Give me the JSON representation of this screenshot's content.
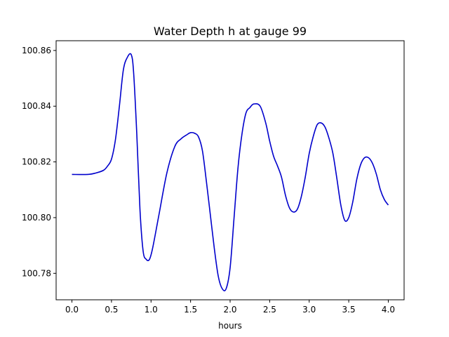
{
  "chart_data": {
    "type": "line",
    "title": "Water Depth h at gauge 99",
    "xlabel": "hours",
    "ylabel": "",
    "xlim": [
      -0.2,
      4.2
    ],
    "ylim": [
      100.7705,
      100.8635
    ],
    "xticks": [
      0.0,
      0.5,
      1.0,
      1.5,
      2.0,
      2.5,
      3.0,
      3.5,
      4.0
    ],
    "xtick_labels": [
      "0.0",
      "0.5",
      "1.0",
      "1.5",
      "2.0",
      "2.5",
      "3.0",
      "3.5",
      "4.0"
    ],
    "yticks": [
      100.78,
      100.8,
      100.82,
      100.84,
      100.86
    ],
    "ytick_labels": [
      "100.78",
      "100.80",
      "100.82",
      "100.84",
      "100.86"
    ],
    "grid": false,
    "series": [
      {
        "color": "#0000cc",
        "x": [
          0.0,
          0.2,
          0.3,
          0.4,
          0.45,
          0.5,
          0.55,
          0.6,
          0.65,
          0.7,
          0.75,
          0.78,
          0.82,
          0.86,
          0.9,
          0.94,
          0.98,
          1.02,
          1.1,
          1.2,
          1.3,
          1.38,
          1.45,
          1.5,
          1.55,
          1.6,
          1.65,
          1.7,
          1.75,
          1.8,
          1.85,
          1.9,
          1.95,
          2.0,
          2.05,
          2.1,
          2.15,
          2.2,
          2.25,
          2.3,
          2.38,
          2.45,
          2.5,
          2.55,
          2.6,
          2.65,
          2.7,
          2.75,
          2.8,
          2.85,
          2.9,
          2.95,
          3.0,
          3.05,
          3.1,
          3.15,
          3.2,
          3.25,
          3.3,
          3.35,
          3.4,
          3.45,
          3.5,
          3.55,
          3.6,
          3.65,
          3.7,
          3.75,
          3.8,
          3.85,
          3.9,
          3.95,
          4.0
        ],
        "y": [
          100.8155,
          100.8155,
          100.816,
          100.817,
          100.8185,
          100.821,
          100.828,
          100.84,
          100.853,
          100.8575,
          100.8585,
          100.852,
          100.83,
          100.803,
          100.788,
          100.785,
          100.785,
          100.789,
          100.801,
          100.816,
          100.8255,
          100.8283,
          100.8297,
          100.8305,
          100.8303,
          100.829,
          100.824,
          100.813,
          100.801,
          100.789,
          100.779,
          100.7745,
          100.7745,
          100.782,
          100.8,
          100.818,
          100.83,
          100.8375,
          100.8395,
          100.8408,
          100.84,
          100.834,
          100.8275,
          100.822,
          100.8185,
          100.8145,
          100.808,
          100.8035,
          100.802,
          100.803,
          100.8075,
          100.8145,
          100.823,
          100.829,
          100.8333,
          100.834,
          100.8325,
          100.8285,
          100.823,
          100.814,
          100.8045,
          100.799,
          100.8,
          100.8055,
          100.8135,
          100.819,
          100.8215,
          100.8215,
          100.8195,
          100.8155,
          100.81,
          100.8065,
          100.8045
        ]
      }
    ]
  }
}
